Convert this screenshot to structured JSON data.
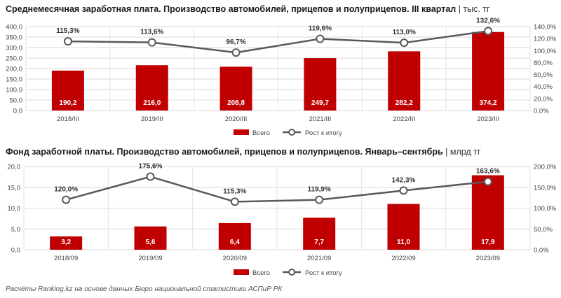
{
  "chart_data": [
    {
      "type": "bar",
      "title": "Среднемесячная заработная плата. Производство автомобилей, прицепов и полуприцепов. III квартал",
      "unit": "| тыс. тг",
      "categories": [
        "2018/III",
        "2019/III",
        "2020/III",
        "2021/III",
        "2022/III",
        "2023/III"
      ],
      "series": [
        {
          "name": "Всего",
          "type": "bar",
          "axis": "left",
          "color": "#c00000",
          "values": [
            190.2,
            216.0,
            208.8,
            249.7,
            282.2,
            374.2
          ],
          "labels": [
            "190,2",
            "216,0",
            "208,8",
            "249,7",
            "282,2",
            "374,2"
          ]
        },
        {
          "name": "Рост к итогу",
          "type": "line",
          "axis": "right",
          "color": "#595959",
          "values": [
            115.3,
            113.6,
            96.7,
            119.6,
            113.0,
            132.6
          ],
          "labels": [
            "115,3%",
            "113,6%",
            "96,7%",
            "119,6%",
            "113,0%",
            "132,6%"
          ]
        }
      ],
      "ylim_left": [
        0,
        400
      ],
      "yticks_left": [
        "0,0",
        "50,0",
        "100,0",
        "150,0",
        "200,0",
        "250,0",
        "300,0",
        "350,0",
        "400,0"
      ],
      "ylim_right": [
        0,
        140
      ],
      "yticks_right": [
        "0,0%",
        "20,0%",
        "40,0%",
        "60,0%",
        "80,0%",
        "100,0%",
        "120,0%",
        "140,0%"
      ],
      "grid": true,
      "legend": "bottom-center"
    },
    {
      "type": "bar",
      "title": "Фонд заработной платы. Производство автомобилей, прицепов и полуприцепов. Январь–сентябрь",
      "unit": "| млрд тг",
      "categories": [
        "2018/09",
        "2019/09",
        "2020/09",
        "2021/09",
        "2022/09",
        "2023/09"
      ],
      "series": [
        {
          "name": "Всего",
          "type": "bar",
          "axis": "left",
          "color": "#c00000",
          "values": [
            3.2,
            5.6,
            6.4,
            7.7,
            11.0,
            17.9
          ],
          "labels": [
            "3,2",
            "5,6",
            "6,4",
            "7,7",
            "11,0",
            "17,9"
          ]
        },
        {
          "name": "Рост к итогу",
          "type": "line",
          "axis": "right",
          "color": "#595959",
          "values": [
            120.0,
            175.6,
            115.3,
            119.9,
            142.3,
            163.6
          ],
          "labels": [
            "120,0%",
            "175,6%",
            "115,3%",
            "119,9%",
            "142,3%",
            "163,6%"
          ]
        }
      ],
      "ylim_left": [
        0,
        20
      ],
      "yticks_left": [
        "0,0",
        "5,0",
        "10,0",
        "15,0",
        "20,0"
      ],
      "ylim_right": [
        0,
        200
      ],
      "yticks_right": [
        "0,0%",
        "50,0%",
        "100,0%",
        "150,0%",
        "200,0%"
      ],
      "grid": true,
      "legend": "bottom-center"
    }
  ],
  "footnote": "Расчёты Ranking.kz на основе данных Бюро национальной статистики АСПиР РК"
}
